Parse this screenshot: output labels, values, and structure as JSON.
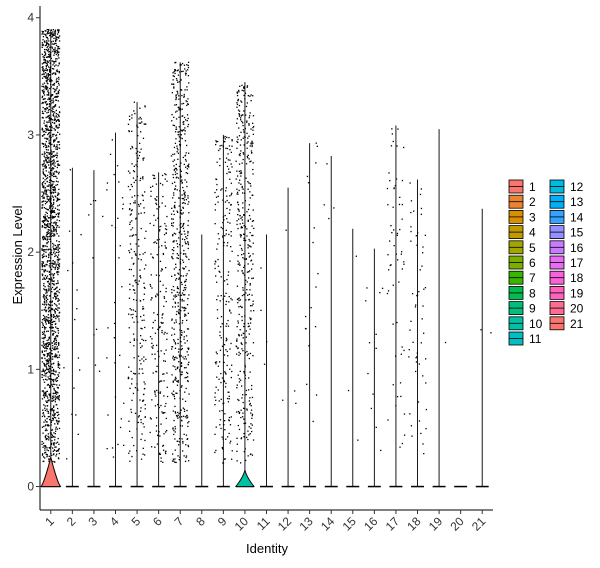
{
  "chart_data": {
    "type": "violin",
    "title": "",
    "xlabel": "Identity",
    "ylabel": "Expression Level",
    "ylim": [
      -0.2,
      4.1
    ],
    "yticks": [
      0,
      1,
      2,
      3,
      4
    ],
    "grid": false,
    "legend_position": "right",
    "legend_columns": 2,
    "series": [
      {
        "name": "1",
        "color": "#F8766D",
        "max": 3.9,
        "n_points": 1800,
        "violin_height": 0.25,
        "violin_halfwidth": 0.45
      },
      {
        "name": "2",
        "color": "#EA8331",
        "max": 2.72,
        "n_points": 16,
        "violin_height": 0,
        "violin_halfwidth": 0.3
      },
      {
        "name": "3",
        "color": "#D89000",
        "max": 2.7,
        "n_points": 10,
        "violin_height": 0,
        "violin_halfwidth": 0.3
      },
      {
        "name": "4",
        "color": "#C09B00",
        "max": 3.02,
        "n_points": 34,
        "violin_height": 0,
        "violin_halfwidth": 0.3
      },
      {
        "name": "5",
        "color": "#A3A500",
        "max": 3.28,
        "n_points": 260,
        "violin_height": 0,
        "violin_halfwidth": 0.3
      },
      {
        "name": "6",
        "color": "#7CAE00",
        "max": 2.68,
        "n_points": 190,
        "violin_height": 0,
        "violin_halfwidth": 0.3
      },
      {
        "name": "7",
        "color": "#39B600",
        "max": 3.62,
        "n_points": 600,
        "violin_height": 0,
        "violin_halfwidth": 0.3
      },
      {
        "name": "8",
        "color": "#00BB4E",
        "max": 2.15,
        "n_points": 0,
        "violin_height": 0,
        "violin_halfwidth": 0.3
      },
      {
        "name": "9",
        "color": "#00BF7D",
        "max": 3.0,
        "n_points": 230,
        "violin_height": 0,
        "violin_halfwidth": 0.3
      },
      {
        "name": "10",
        "color": "#00C1A3",
        "max": 3.45,
        "n_points": 420,
        "violin_height": 0.14,
        "violin_halfwidth": 0.42
      },
      {
        "name": "11",
        "color": "#00BFC4",
        "max": 2.15,
        "n_points": 4,
        "violin_height": 0,
        "violin_halfwidth": 0.3
      },
      {
        "name": "12",
        "color": "#00BAE0",
        "max": 2.55,
        "n_points": 4,
        "violin_height": 0,
        "violin_halfwidth": 0.3
      },
      {
        "name": "13",
        "color": "#00B0F6",
        "max": 2.93,
        "n_points": 18,
        "violin_height": 0,
        "violin_halfwidth": 0.3
      },
      {
        "name": "14",
        "color": "#35A2FF",
        "max": 2.82,
        "n_points": 4,
        "violin_height": 0,
        "violin_halfwidth": 0.3
      },
      {
        "name": "15",
        "color": "#9590FF",
        "max": 2.2,
        "n_points": 3,
        "violin_height": 0,
        "violin_halfwidth": 0.3
      },
      {
        "name": "16",
        "color": "#C77CFF",
        "max": 2.03,
        "n_points": 12,
        "violin_height": 0,
        "violin_halfwidth": 0.3
      },
      {
        "name": "17",
        "color": "#E76BF3",
        "max": 3.08,
        "n_points": 60,
        "violin_height": 0,
        "violin_halfwidth": 0.3
      },
      {
        "name": "18",
        "color": "#FA62DB",
        "max": 2.62,
        "n_points": 55,
        "violin_height": 0,
        "violin_halfwidth": 0.3
      },
      {
        "name": "19",
        "color": "#FF62BC",
        "max": 3.05,
        "n_points": 1,
        "violin_height": 0,
        "violin_halfwidth": 0.3
      },
      {
        "name": "20",
        "color": "#FF6C91",
        "max": 0,
        "n_points": 0,
        "violin_height": 0,
        "violin_halfwidth": 0.3
      },
      {
        "name": "21",
        "color": "#F8766D",
        "max": 2.37,
        "n_points": 2,
        "violin_height": 0,
        "violin_halfwidth": 0.3
      }
    ]
  }
}
